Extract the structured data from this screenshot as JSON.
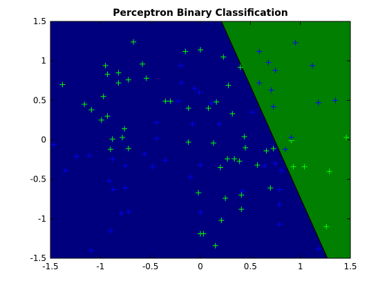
{
  "chart_data": {
    "type": "scatter",
    "title": "Perceptron Binary Classification",
    "xlim": [
      -1.5,
      1.5
    ],
    "ylim": [
      -1.5,
      1.5
    ],
    "xticks": [
      -1.5,
      -1,
      -0.5,
      0,
      0.5,
      1,
      1.5
    ],
    "yticks": [
      -1.5,
      -1,
      -0.5,
      0,
      0.5,
      1,
      1.5
    ],
    "marker": "+",
    "decision_boundary": {
      "x": [
        0.21,
        1.27
      ],
      "y": [
        1.5,
        -1.5
      ],
      "color": "#000000"
    },
    "region_colors": [
      "#00007f",
      "#007f00"
    ],
    "series": [
      {
        "color": "#00ff00",
        "x": [
          -0.67,
          -0.15,
          0.0,
          0.23,
          0.4,
          -1.38,
          -0.95,
          -0.93,
          -0.82,
          -0.72,
          -0.82,
          -0.58,
          -0.54,
          -0.97,
          -1.16,
          -1.09,
          -0.99,
          -0.93,
          -0.76,
          -0.78,
          -0.88,
          -0.9,
          -0.72,
          -0.35,
          -0.3,
          -0.12,
          0.08,
          0.16,
          -0.12,
          0.13,
          0.28,
          0.32,
          0.44,
          0.45,
          0.34,
          0.39,
          0.27,
          0.2,
          -0.02,
          0.25,
          0.41,
          0.21,
          0.0,
          0.03,
          0.15,
          0.41,
          0.7,
          0.57,
          0.66,
          0.73,
          0.91,
          0.93,
          1.04,
          1.29,
          1.26,
          1.46
        ],
        "values": [
          1.24,
          1.12,
          1.14,
          1.05,
          0.92,
          0.7,
          0.94,
          0.83,
          0.85,
          0.76,
          0.72,
          0.96,
          0.78,
          0.55,
          0.45,
          0.38,
          0.25,
          0.3,
          0.14,
          0.03,
          0.01,
          -0.12,
          -0.11,
          0.49,
          0.49,
          0.4,
          0.4,
          0.48,
          -0.03,
          -0.04,
          0.69,
          0.33,
          0.04,
          -0.1,
          -0.24,
          -0.27,
          -0.24,
          -0.35,
          -0.67,
          -0.74,
          -0.7,
          -1.02,
          -1.19,
          -1.19,
          -1.34,
          -0.88,
          -0.61,
          -0.32,
          -0.14,
          -0.11,
          -0.01,
          -0.34,
          -0.34,
          -0.4,
          -1.1,
          0.03
        ]
      },
      {
        "color": "#0000ff",
        "x": [
          0.59,
          0.95,
          1.12,
          0.68,
          0.75,
          0.59,
          0.71,
          0.73,
          1.18,
          1.35,
          0.91,
          0.85,
          0.64,
          0.81,
          0.75,
          0.79,
          0.79,
          0.79,
          1.18,
          0.52,
          -0.2,
          -0.19,
          -0.22,
          -0.01,
          0.11,
          -0.08,
          -0.44,
          -0.44,
          -0.35,
          -0.56,
          -0.48,
          -0.75,
          -1.11,
          -1.24,
          -1.35,
          -1.47,
          -0.88,
          -0.91,
          -0.75,
          -0.87,
          -0.79,
          -0.72,
          -0.9,
          -1.09,
          -0.1,
          0.0,
          0.19,
          0.42,
          0.0,
          -0.06
        ],
        "values": [
          1.12,
          1.23,
          0.94,
          0.98,
          0.88,
          0.72,
          0.63,
          0.42,
          0.47,
          0.5,
          0.03,
          -0.12,
          -0.33,
          -0.39,
          -0.3,
          -0.63,
          -0.82,
          -1.07,
          -1.38,
          0.35,
          0.94,
          0.72,
          0.49,
          0.6,
          0.47,
          0.2,
          0.22,
          0.02,
          -0.26,
          -0.18,
          -0.34,
          -0.33,
          -0.2,
          -0.21,
          -0.39,
          -0.06,
          -0.24,
          -0.52,
          -0.61,
          -0.63,
          -0.93,
          -0.91,
          -1.15,
          -1.4,
          -0.47,
          -0.32,
          0.2,
          -0.65,
          -0.92,
          0.65
        ]
      }
    ]
  }
}
